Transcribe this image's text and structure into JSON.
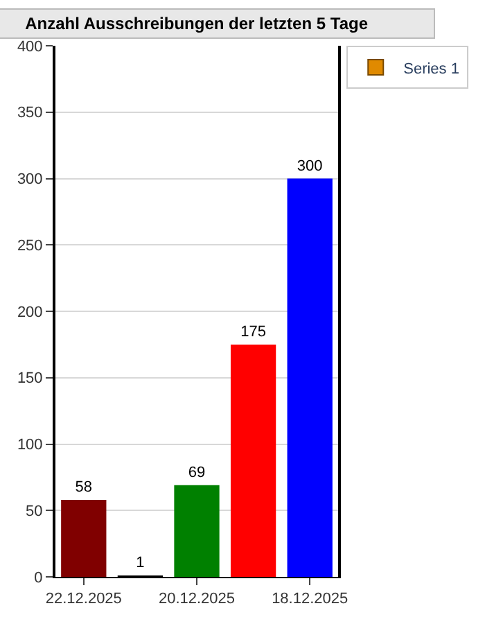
{
  "chart_data": {
    "type": "bar",
    "title": "Anzahl Ausschreibungen der letzten 5 Tage",
    "categories": [
      "22.12.2025",
      null,
      "20.12.2025",
      null,
      "18.12.2025"
    ],
    "series": [
      {
        "name": "Series 1",
        "color": "#e08a00",
        "colors": [
          "#800000",
          "#000000",
          "#008000",
          "#ff0000",
          "#0000ff"
        ],
        "values": [
          58,
          1,
          69,
          175,
          300
        ]
      }
    ],
    "ylim": [
      0,
      400
    ],
    "yticks": [
      0,
      50,
      100,
      150,
      200,
      250,
      300,
      350,
      400
    ],
    "grid": "y",
    "legend": "top right",
    "data_labels": true
  }
}
